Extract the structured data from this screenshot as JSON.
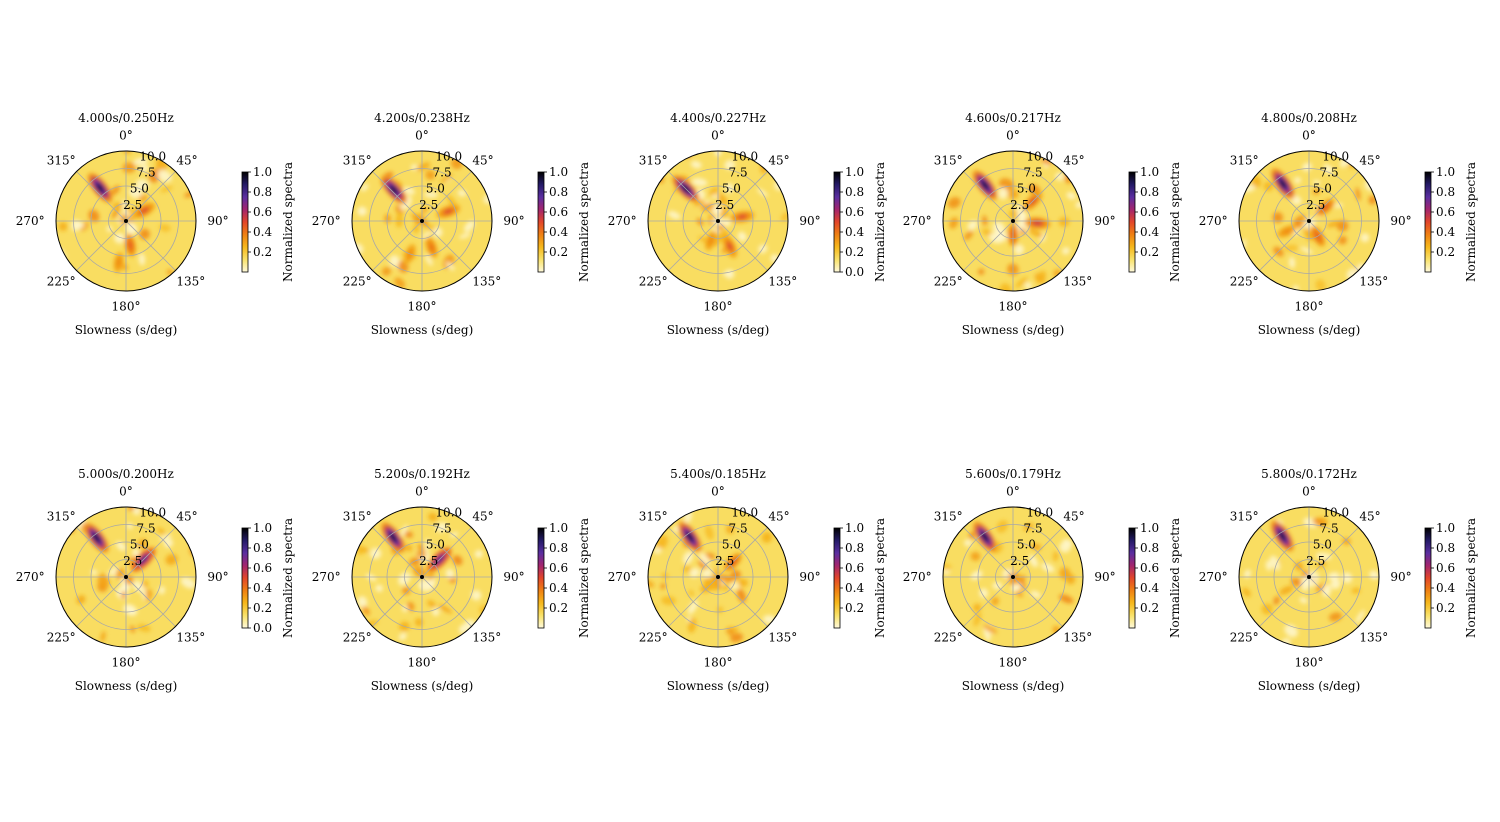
{
  "figure": {
    "rows": 2,
    "cols": 5
  },
  "common": {
    "xlabel": "Slowness (s/deg)",
    "colorbar_label": "Normalized spectra",
    "theta_ticks": [
      "0°",
      "45°",
      "90°",
      "135°",
      "180°",
      "225°",
      "270°",
      "315°"
    ],
    "r_ticks": [
      "2.5",
      "5.0",
      "7.5",
      "10.0"
    ],
    "colormap": [
      "#fffadc",
      "#f9e26a",
      "#f6b81c",
      "#ef8013",
      "#e2462a",
      "#a3256e",
      "#5a2ea0",
      "#241a66",
      "#000000"
    ],
    "grid_color": "#a8a8a8"
  },
  "chart_data": [
    {
      "type": "heatmap",
      "projection": "polar",
      "title": "4.000s/0.250Hz",
      "xlabel": "Slowness (s/deg)",
      "r_range": [
        0,
        10
      ],
      "theta_zero": "N",
      "theta_direction": "clockwise",
      "grid": true,
      "colorbar": {
        "label": "Normalized spectra",
        "range": [
          0,
          1
        ],
        "ticks": [
          "0.2",
          "0.4",
          "0.6",
          "0.8",
          "1.0"
        ]
      },
      "peaks": [
        {
          "azimuth_deg": 322,
          "slowness": 6.0,
          "value": 1.0
        },
        {
          "azimuth_deg": 60,
          "slowness": 3.0,
          "value": 0.55
        },
        {
          "azimuth_deg": 170,
          "slowness": 3.5,
          "value": 0.5
        },
        {
          "azimuth_deg": 190,
          "slowness": 6.0,
          "value": 0.4
        }
      ]
    },
    {
      "type": "heatmap",
      "projection": "polar",
      "title": "4.200s/0.238Hz",
      "xlabel": "Slowness (s/deg)",
      "r_range": [
        0,
        10
      ],
      "theta_zero": "N",
      "theta_direction": "clockwise",
      "grid": true,
      "colorbar": {
        "label": "Normalized spectra",
        "range": [
          0,
          1
        ],
        "ticks": [
          "0.2",
          "0.4",
          "0.6",
          "0.8",
          "1.0"
        ]
      },
      "peaks": [
        {
          "azimuth_deg": 318,
          "slowness": 6.0,
          "value": 1.0
        },
        {
          "azimuth_deg": 70,
          "slowness": 4.0,
          "value": 0.55
        },
        {
          "azimuth_deg": 160,
          "slowness": 4.0,
          "value": 0.45
        },
        {
          "azimuth_deg": 200,
          "slowness": 5.0,
          "value": 0.4
        }
      ]
    },
    {
      "type": "heatmap",
      "projection": "polar",
      "title": "4.400s/0.227Hz",
      "xlabel": "Slowness (s/deg)",
      "r_range": [
        0,
        10
      ],
      "theta_zero": "N",
      "theta_direction": "clockwise",
      "grid": true,
      "colorbar": {
        "label": "Normalized spectra",
        "range": [
          0,
          1
        ],
        "ticks": [
          "0.0",
          "0.2",
          "0.4",
          "0.6",
          "0.8",
          "1.0"
        ]
      },
      "peaks": [
        {
          "azimuth_deg": 315,
          "slowness": 6.5,
          "value": 1.0
        },
        {
          "azimuth_deg": 80,
          "slowness": 3.5,
          "value": 0.55
        },
        {
          "azimuth_deg": 155,
          "slowness": 4.0,
          "value": 0.55
        },
        {
          "azimuth_deg": 200,
          "slowness": 3.0,
          "value": 0.4
        }
      ]
    },
    {
      "type": "heatmap",
      "projection": "polar",
      "title": "4.600s/0.217Hz",
      "xlabel": "Slowness (s/deg)",
      "r_range": [
        0,
        10
      ],
      "theta_zero": "N",
      "theta_direction": "clockwise",
      "grid": true,
      "colorbar": {
        "label": "Normalized spectra",
        "range": [
          0,
          1
        ],
        "ticks": [
          "0.2",
          "0.4",
          "0.6",
          "0.8",
          "1.0"
        ]
      },
      "peaks": [
        {
          "azimuth_deg": 322,
          "slowness": 6.5,
          "value": 1.0
        },
        {
          "azimuth_deg": 45,
          "slowness": 4.0,
          "value": 0.55
        },
        {
          "azimuth_deg": 95,
          "slowness": 3.5,
          "value": 0.6
        },
        {
          "azimuth_deg": 180,
          "slowness": 2.0,
          "value": 0.5
        }
      ]
    },
    {
      "type": "heatmap",
      "projection": "polar",
      "title": "4.800s/0.208Hz",
      "xlabel": "Slowness (s/deg)",
      "r_range": [
        0,
        10
      ],
      "theta_zero": "N",
      "theta_direction": "clockwise",
      "grid": true,
      "colorbar": {
        "label": "Normalized spectra",
        "range": [
          0,
          1
        ],
        "ticks": [
          "0.2",
          "0.4",
          "0.6",
          "0.8",
          "1.0"
        ]
      },
      "peaks": [
        {
          "azimuth_deg": 325,
          "slowness": 6.5,
          "value": 1.0
        },
        {
          "azimuth_deg": 50,
          "slowness": 3.0,
          "value": 0.5
        },
        {
          "azimuth_deg": 150,
          "slowness": 2.5,
          "value": 0.5
        },
        {
          "azimuth_deg": 245,
          "slowness": 3.5,
          "value": 0.4
        }
      ]
    },
    {
      "type": "heatmap",
      "projection": "polar",
      "title": "5.000s/0.200Hz",
      "xlabel": "Slowness (s/deg)",
      "r_range": [
        0,
        10
      ],
      "theta_zero": "N",
      "theta_direction": "clockwise",
      "grid": true,
      "colorbar": {
        "label": "Normalized spectra",
        "range": [
          0,
          1
        ],
        "ticks": [
          "0.0",
          "0.2",
          "0.4",
          "0.6",
          "0.8",
          "1.0"
        ]
      },
      "peaks": [
        {
          "azimuth_deg": 323,
          "slowness": 7.0,
          "value": 1.0
        },
        {
          "azimuth_deg": 45,
          "slowness": 3.5,
          "value": 0.85
        }
      ]
    },
    {
      "type": "heatmap",
      "projection": "polar",
      "title": "5.200s/0.192Hz",
      "xlabel": "Slowness (s/deg)",
      "r_range": [
        0,
        10
      ],
      "theta_zero": "N",
      "theta_direction": "clockwise",
      "grid": true,
      "colorbar": {
        "label": "Normalized spectra",
        "range": [
          0,
          1
        ],
        "ticks": [
          "0.2",
          "0.4",
          "0.6",
          "0.8",
          "1.0"
        ]
      },
      "peaks": [
        {
          "azimuth_deg": 324,
          "slowness": 7.0,
          "value": 1.0
        },
        {
          "azimuth_deg": 45,
          "slowness": 3.5,
          "value": 0.85
        }
      ]
    },
    {
      "type": "heatmap",
      "projection": "polar",
      "title": "5.400s/0.185Hz",
      "xlabel": "Slowness (s/deg)",
      "r_range": [
        0,
        10
      ],
      "theta_zero": "N",
      "theta_direction": "clockwise",
      "grid": true,
      "colorbar": {
        "label": "Normalized spectra",
        "range": [
          0,
          1
        ],
        "ticks": [
          "0.2",
          "0.4",
          "0.6",
          "0.8",
          "1.0"
        ]
      },
      "peaks": [
        {
          "azimuth_deg": 325,
          "slowness": 7.0,
          "value": 1.0
        },
        {
          "azimuth_deg": 45,
          "slowness": 3.0,
          "value": 0.5
        }
      ]
    },
    {
      "type": "heatmap",
      "projection": "polar",
      "title": "5.600s/0.179Hz",
      "xlabel": "Slowness (s/deg)",
      "r_range": [
        0,
        10
      ],
      "theta_zero": "N",
      "theta_direction": "clockwise",
      "grid": true,
      "colorbar": {
        "label": "Normalized spectra",
        "range": [
          0,
          1
        ],
        "ticks": [
          "0.2",
          "0.4",
          "0.6",
          "0.8",
          "1.0"
        ]
      },
      "peaks": [
        {
          "azimuth_deg": 325,
          "slowness": 7.0,
          "value": 1.0
        }
      ]
    },
    {
      "type": "heatmap",
      "projection": "polar",
      "title": "5.800s/0.172Hz",
      "xlabel": "Slowness (s/deg)",
      "r_range": [
        0,
        10
      ],
      "theta_zero": "N",
      "theta_direction": "clockwise",
      "grid": true,
      "colorbar": {
        "label": "Normalized spectra",
        "range": [
          0,
          1
        ],
        "ticks": [
          "0.2",
          "0.4",
          "0.6",
          "0.8",
          "1.0"
        ]
      },
      "peaks": [
        {
          "azimuth_deg": 327,
          "slowness": 7.0,
          "value": 1.0
        }
      ]
    }
  ]
}
